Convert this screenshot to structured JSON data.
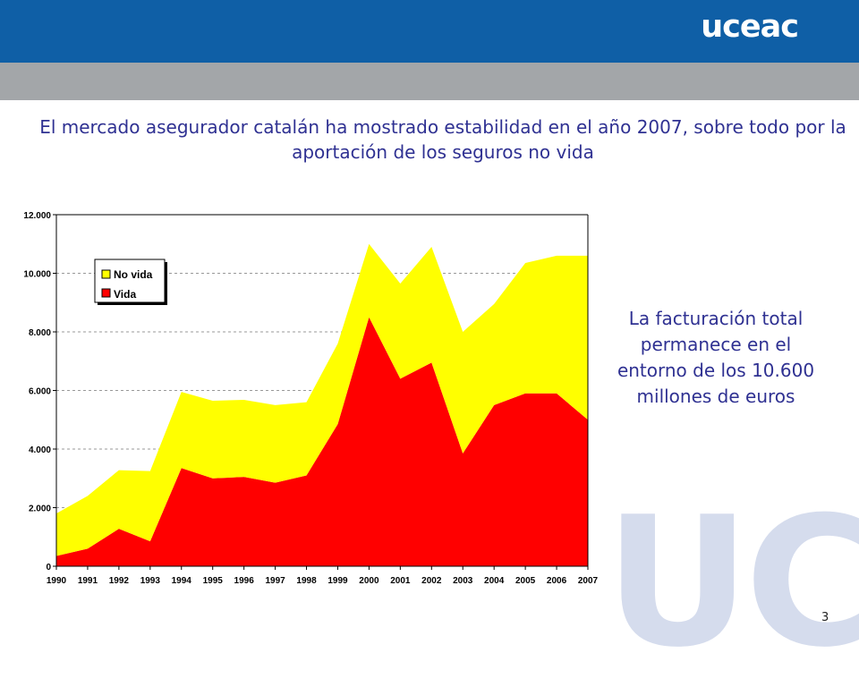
{
  "header": {
    "logo_text": "uceac"
  },
  "headline": "El mercado asegurador catalán ha mostrado estabilidad en el año 2007, sobre todo por la aportación de los seguros no vida",
  "side_note": "La facturación total permanece en el entorno de los 10.600 millones de euros",
  "watermark": "UC",
  "page_number": "3",
  "chart_data": {
    "type": "area",
    "stacked": true,
    "categories": [
      "1990",
      "1991",
      "1992",
      "1993",
      "1994",
      "1995",
      "1996",
      "1997",
      "1998",
      "1999",
      "2000",
      "2001",
      "2002",
      "2003",
      "2004",
      "2005",
      "2006",
      "2007"
    ],
    "series": [
      {
        "name": "Vida",
        "color": "#ff0000",
        "values": [
          350,
          600,
          1280,
          850,
          3350,
          3000,
          3050,
          2850,
          3100,
          4850,
          8500,
          6400,
          6950,
          3850,
          5500,
          5900,
          5900,
          5000
        ]
      },
      {
        "name": "No vida",
        "color": "#ffff00",
        "values": [
          1450,
          1800,
          2000,
          2400,
          2600,
          2650,
          2630,
          2650,
          2500,
          2750,
          2500,
          3250,
          3950,
          4150,
          3450,
          4450,
          4700,
          5600
        ]
      }
    ],
    "ylim": [
      0,
      12000
    ],
    "yticks": [
      0,
      2000,
      4000,
      6000,
      8000,
      10000,
      12000
    ],
    "ytick_labels": [
      "0",
      "2.000",
      "4.000",
      "6.000",
      "8.000",
      "10.000",
      "12.000"
    ],
    "grid": true,
    "legend_entries": [
      "No vida",
      "Vida"
    ],
    "legend_position": "top-left",
    "title": "",
    "xlabel": "",
    "ylabel": ""
  }
}
